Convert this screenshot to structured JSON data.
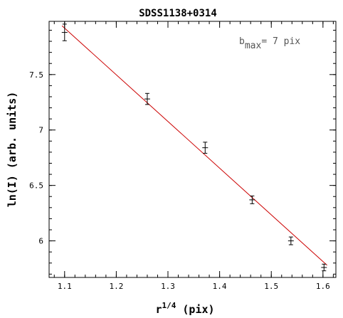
{
  "chart_data": {
    "type": "scatter",
    "title": "SDSS1138+0314",
    "xlabel_base": "r",
    "xlabel_sup": "1/4",
    "xlabel_rest": " (pix)",
    "ylabel": "ln(I)  (arb. units)",
    "annotation": {
      "base": "b",
      "sub": "max",
      "rest": "= 7 pix"
    },
    "xlim": [
      1.07,
      1.625
    ],
    "ylim": [
      5.67,
      7.98
    ],
    "x_ticks": [
      1.1,
      1.2,
      1.3,
      1.4,
      1.5,
      1.6
    ],
    "x_tick_labels": [
      "1.1",
      "1.2",
      "1.3",
      "1.4",
      "1.5",
      "1.6"
    ],
    "y_ticks": [
      6,
      6.5,
      7,
      7.5
    ],
    "y_tick_labels": [
      "6",
      "6.5",
      "7",
      "7.5"
    ],
    "points": [
      {
        "x": 1.1,
        "y": 7.88,
        "err": 0.075
      },
      {
        "x": 1.26,
        "y": 7.28,
        "err": 0.05
      },
      {
        "x": 1.372,
        "y": 6.84,
        "err": 0.05
      },
      {
        "x": 1.463,
        "y": 6.37,
        "err": 0.035
      },
      {
        "x": 1.538,
        "y": 6.0,
        "err": 0.035
      },
      {
        "x": 1.602,
        "y": 5.76,
        "err": 0.03
      }
    ],
    "fit_line": {
      "x": [
        1.095,
        1.608
      ],
      "y": [
        7.94,
        5.78
      ],
      "color": "#cc0000"
    },
    "grid": false
  }
}
